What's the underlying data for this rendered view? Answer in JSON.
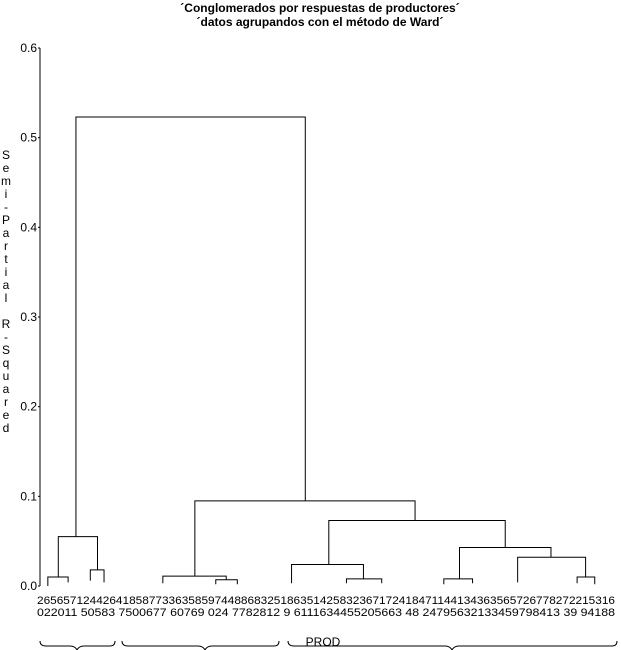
{
  "chart_data": {
    "type": "dendrogram",
    "title": "´Conglomerados por respuestas de productores´",
    "subtitle": "´datos agrupandos con el método de Ward´",
    "y_label": "Semi-Partial R-Squared",
    "x_label": "PROD",
    "ylim": [
      0,
      0.6
    ],
    "yticks": [
      {
        "value": 0,
        "label": "0.0"
      },
      0.1,
      0.2,
      0.3,
      0.4,
      0.5,
      0.6
    ],
    "xlim": [
      0,
      88
    ],
    "leaf_label_rows": [
      "2656571244264185877336358597448868325186351425832367172418471144134363565726778272215316",
      "022011 50583 7500677 60769 024 7782812 9 6111634455205663 48 24795632133459798413 39 94188"
    ],
    "color": "#000000",
    "links": [
      {
        "x": [
          5.5,
          40.6
        ],
        "h": 0.523,
        "h_left": 0.055,
        "h_right": 0.095
      },
      {
        "x": [
          2.8,
          8.8
        ],
        "h": 0.055,
        "h_left": 0.01,
        "h_right": 0.018
      },
      {
        "x": [
          1.2,
          4.3
        ],
        "h": 0.01,
        "h_left": 0,
        "h_right": 0.004
      },
      {
        "x": [
          7.7,
          9.8
        ],
        "h": 0.018,
        "h_left": 0.006,
        "h_right": 0.004
      },
      {
        "x": [
          23.7,
          57.4
        ],
        "h": 0.095,
        "h_left": 0.011,
        "h_right": 0.073
      },
      {
        "x": [
          18.8,
          28.5
        ],
        "h": 0.011,
        "h_left": 0.003,
        "h_right": 0.007
      },
      {
        "x": [
          26.9,
          30.2
        ],
        "h": 0.007,
        "h_left": 0.002,
        "h_right": 0.002
      },
      {
        "x": [
          44.2,
          71.2
        ],
        "h": 0.073,
        "h_left": 0.024,
        "h_right": 0.043
      },
      {
        "x": [
          38.5,
          49.5
        ],
        "h": 0.024,
        "h_left": 0.003,
        "h_right": 0.008
      },
      {
        "x": [
          46.9,
          52.3
        ],
        "h": 0.008,
        "h_left": 0.003,
        "h_right": 0.003
      },
      {
        "x": [
          64.2,
          78.2
        ],
        "h": 0.043,
        "h_left": 0.008,
        "h_right": 0.032
      },
      {
        "x": [
          61.8,
          66.2
        ],
        "h": 0.008,
        "h_left": 0.002,
        "h_right": 0.003
      },
      {
        "x": [
          73.1,
          83.5
        ],
        "h": 0.032,
        "h_left": 0.004,
        "h_right": 0.01
      },
      {
        "x": [
          82.2,
          84.9
        ],
        "h": 0.01,
        "h_left": 0.003,
        "h_right": 0.002
      }
    ]
  }
}
